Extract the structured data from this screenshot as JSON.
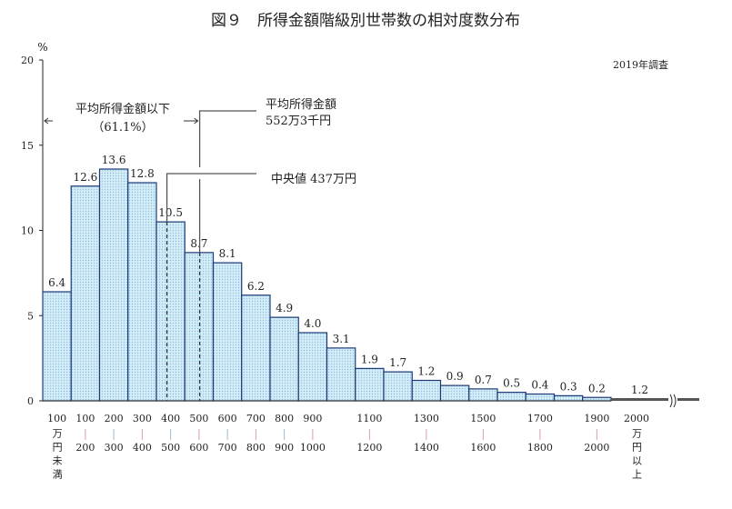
{
  "chart_data": {
    "type": "bar",
    "title": "図９　所得金額階級別世帯数の相対度数分布",
    "unit_label": "%",
    "survey_note": "2019年調査",
    "ylim": [
      0,
      20
    ],
    "yticks": [
      0,
      5,
      10,
      15,
      20
    ],
    "categories": [
      {
        "top": "100",
        "bottom": "万円未満"
      },
      {
        "top": "100",
        "bottom": "200"
      },
      {
        "top": "200",
        "bottom": "300"
      },
      {
        "top": "300",
        "bottom": "400"
      },
      {
        "top": "400",
        "bottom": "500"
      },
      {
        "top": "500",
        "bottom": "600"
      },
      {
        "top": "600",
        "bottom": "700"
      },
      {
        "top": "700",
        "bottom": "800"
      },
      {
        "top": "800",
        "bottom": "900"
      },
      {
        "top": "900",
        "bottom": "1000"
      },
      {
        "top": "",
        "bottom": ""
      },
      {
        "top": "1100",
        "bottom": "1200"
      },
      {
        "top": "",
        "bottom": ""
      },
      {
        "top": "1300",
        "bottom": "1400"
      },
      {
        "top": "",
        "bottom": ""
      },
      {
        "top": "1500",
        "bottom": "1600"
      },
      {
        "top": "",
        "bottom": ""
      },
      {
        "top": "1700",
        "bottom": "1800"
      },
      {
        "top": "",
        "bottom": ""
      },
      {
        "top": "1900",
        "bottom": "2000"
      },
      {
        "top": "2000",
        "bottom": "万円以上"
      }
    ],
    "values": [
      6.4,
      12.6,
      13.6,
      12.8,
      10.5,
      8.7,
      8.1,
      6.2,
      4.9,
      4.0,
      3.1,
      1.9,
      1.7,
      1.2,
      0.9,
      0.7,
      0.5,
      0.4,
      0.3,
      0.2,
      1.2
    ],
    "data_labels": [
      "6.4",
      "12.6",
      "13.6",
      "12.8",
      "10.5",
      "8.7",
      "8.1",
      "6.2",
      "4.9",
      "4.0",
      "3.1",
      "1.9",
      "1.7",
      "1.2",
      "0.9",
      "0.7",
      "0.5",
      "0.4",
      "0.3",
      "0.2",
      "1.2"
    ],
    "bar_width_units": 100,
    "last_bar_compressed": true,
    "colors": {
      "bar_fill": "#d4ecf7",
      "bar_dot": "#8cc4e0",
      "bar_stroke": "#1c3a78",
      "last_bar": "#555555"
    },
    "annotations": {
      "below_mean_label": "平均所得金額以下",
      "below_mean_pct": "（61.1%）",
      "mean_label": "平均所得金額",
      "mean_value_label": "552万3千円",
      "mean_value": 552.3,
      "median_label": "中央値  437万円",
      "median_value": 437
    }
  }
}
